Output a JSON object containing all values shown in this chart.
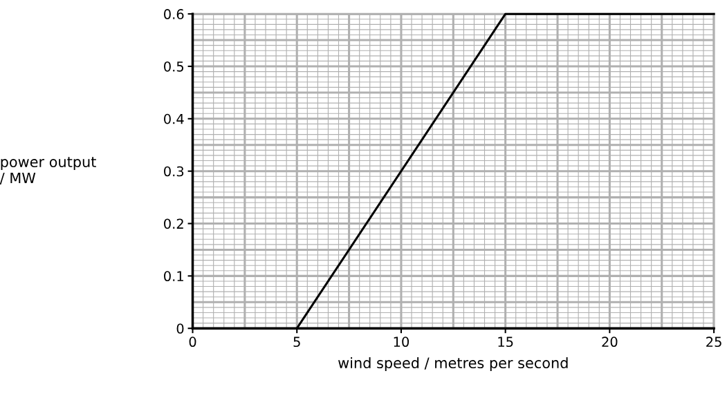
{
  "chart_data": {
    "type": "line",
    "xlabel": "wind speed / metres per second",
    "ylabel": "power output\n/ MW",
    "x": [
      5,
      15,
      25
    ],
    "series": [
      {
        "color": "#000000",
        "values": [
          0,
          0.6,
          0.6
        ]
      }
    ],
    "xlim": [
      0,
      25
    ],
    "ylim": [
      0,
      0.6
    ],
    "xticks": [
      0,
      5,
      10,
      15,
      20,
      25
    ],
    "yticks": [
      0,
      0.1,
      0.2,
      0.3,
      0.4,
      0.5,
      0.6
    ],
    "grid": true,
    "marker": "none",
    "line_style": "solid"
  }
}
